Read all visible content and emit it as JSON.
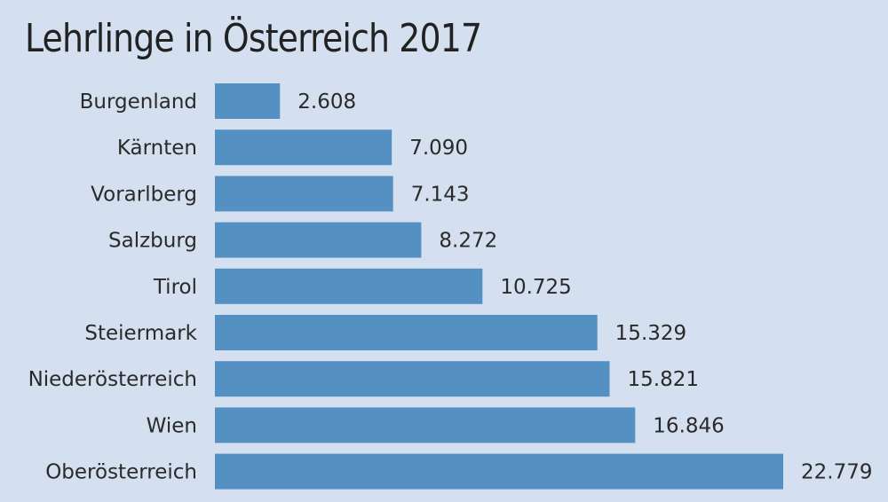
{
  "chart_data": {
    "type": "bar",
    "orientation": "horizontal",
    "title": "Lehrlinge in Österreich 2017",
    "categories": [
      "Burgenland",
      "Kärnten",
      "Vorarlberg",
      "Salzburg",
      "Tirol",
      "Steiermark",
      "Niederösterreich",
      "Wien",
      "Oberösterreich"
    ],
    "values": [
      2608,
      7090,
      7143,
      8272,
      10725,
      15329,
      15821,
      16846,
      22779
    ],
    "value_labels": [
      "2.608",
      "7.090",
      "7.143",
      "8.272",
      "10.725",
      "15.329",
      "15.821",
      "16.846",
      "22.779"
    ],
    "xlim": [
      0,
      22779
    ],
    "grid": false,
    "legend": "none"
  },
  "colors": {
    "background": "#d4e0f0",
    "bar": "#5590c2",
    "text": "#2a2a2a"
  }
}
